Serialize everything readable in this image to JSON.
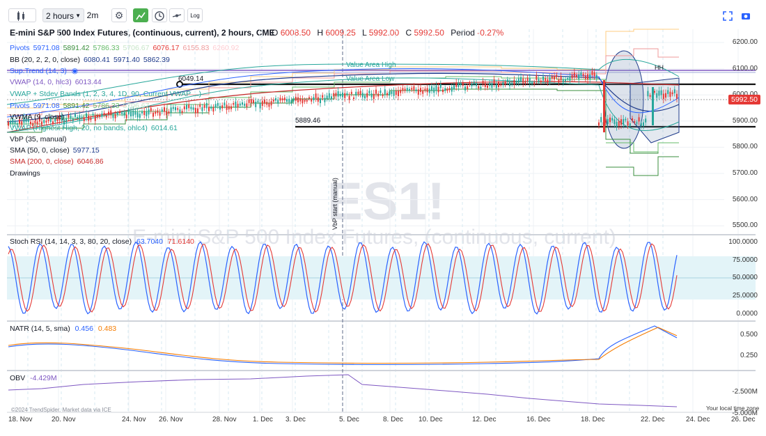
{
  "toolbar": {
    "interval": "2 hours",
    "interval2": "2m",
    "log": "Log"
  },
  "symbol": {
    "title": "E-mini S&P 500 Index Futures, (continuous, current), 2 hours, CME",
    "o_label": "O",
    "o": "6008.50",
    "h_label": "H",
    "h": "6009.25",
    "l_label": "L",
    "l": "5992.00",
    "c_label": "C",
    "c": "5992.50",
    "period_label": "Period",
    "period": "-0.27%",
    "watermark_big": "ES1!",
    "watermark_small": "E-mini S&P 500 Index Futures, (continuous, current)"
  },
  "indicators": [
    {
      "name": "Pivots",
      "values": [
        "5971.08",
        "5891.42",
        "5786.33",
        "5706.67",
        "6076.17",
        "6155.83",
        "6260.92"
      ],
      "colors": [
        "#2962ff",
        "#388e3c",
        "#66bb6a",
        "#c8e6c9",
        "#e53935",
        "#ef9a9a",
        "#ffcdd2"
      ]
    },
    {
      "name": "BB (20, 2, 2, 0, close)",
      "values": [
        "6080.41",
        "5971.40",
        "5862.39"
      ],
      "colors": [
        "#1e3a8a",
        "#1e3a8a",
        "#1e3a8a"
      ]
    },
    {
      "name": "Sup.Trend (14, 3)",
      "values": [],
      "colors": []
    },
    {
      "name": "VWAP (14, 0, hlc3)",
      "values": [
        "6013.44"
      ],
      "colors": [
        "#7e57c2"
      ]
    },
    {
      "name": "VWAP + Stdev Bands (1, 2, 3, 4, 1D, 90, Current VWAP ...)",
      "values": [],
      "colors": []
    },
    {
      "name": "Pivots",
      "values": [
        "5971.08",
        "5891.42",
        "5786.33",
        "5706.67"
      ],
      "colors": [
        "#2962ff",
        "#388e3c",
        "#66bb6a",
        "#c8e6c9"
      ]
    },
    {
      "name": "VWMA (9, close)",
      "values": [],
      "colors": []
    },
    {
      "name": "VWAP (Highest High, 20, no bands, ohlc4)",
      "values": [
        "6014.61"
      ],
      "colors": [
        "#26a69a"
      ]
    },
    {
      "name": "VbP (35, manual)",
      "values": [],
      "colors": []
    },
    {
      "name": "SMA (50, 0, close)",
      "values": [
        "5977.15"
      ],
      "colors": [
        "#1e3a8a"
      ]
    },
    {
      "name": "SMA (200, 0, close)",
      "values": [
        "6046.86"
      ],
      "colors": [
        "#c62828"
      ]
    },
    {
      "name": "Drawings",
      "values": [],
      "colors": []
    }
  ],
  "price_axis": [
    "6200.00",
    "6100.00",
    "6000.00",
    "5900.00",
    "5800.00",
    "5700.00",
    "5600.00",
    "5500.00"
  ],
  "current_price": "5992.50",
  "annotations": {
    "level1": "6049.14",
    "level2": "5889.46",
    "value_area_high": "Value Area High",
    "value_area_low": "Value Area Low",
    "hh": "HH",
    "vbp_start": "VbP start (manual)"
  },
  "stoch": {
    "label": "Stoch RSI (14, 14, 3, 3, 80, 20, close)",
    "k": "63.7040",
    "d": "71.6140",
    "axis": [
      "100.0000",
      "75.0000",
      "50.0000",
      "25.0000",
      "0.0000"
    ]
  },
  "natr": {
    "label": "NATR (14, 5, sma)",
    "v1": "0.456",
    "v2": "0.483",
    "axis": [
      "0.500",
      "0.250"
    ]
  },
  "obv": {
    "label": "OBV",
    "value": "-4.429M",
    "axis": [
      "-2.500M",
      "-5.000M"
    ]
  },
  "x_axis": [
    "18. Nov",
    "20. Nov",
    "24. Nov",
    "26. Nov",
    "28. Nov",
    "1. Dec",
    "3. Dec",
    "5. Dec",
    "8. Dec",
    "10. Dec",
    "12. Dec",
    "16. Dec",
    "18. Dec",
    "22. Dec",
    "24. Dec",
    "26. Dec"
  ],
  "footer": {
    "credit": "©2024 TrendSpider. Market data via ICE",
    "timezone": "Your local time zone"
  },
  "colors": {
    "up": "#26a69a",
    "down": "#e53935",
    "accent": "#2962ff"
  }
}
